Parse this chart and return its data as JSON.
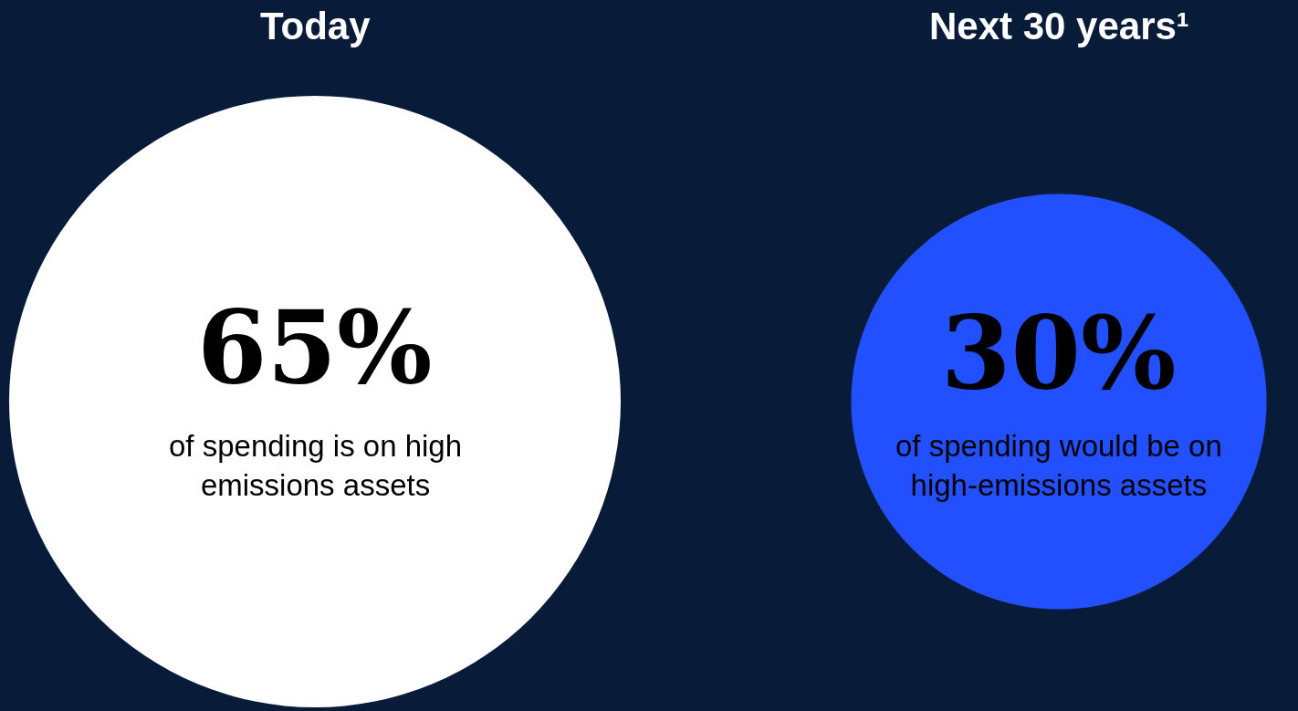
{
  "chart_data": {
    "type": "other",
    "categories": [
      "Today",
      "Next 30 years¹"
    ],
    "values": [
      65,
      30
    ],
    "value_labels": [
      "65%",
      "30%"
    ],
    "colors": [
      "#ffffff",
      "#2350fe"
    ],
    "annotations": [
      {
        "text": "of spending is on high emissions assets",
        "x": "Today"
      },
      {
        "text": "of spending would be on high-emissions assets",
        "x": "Next 30 years¹"
      }
    ]
  }
}
